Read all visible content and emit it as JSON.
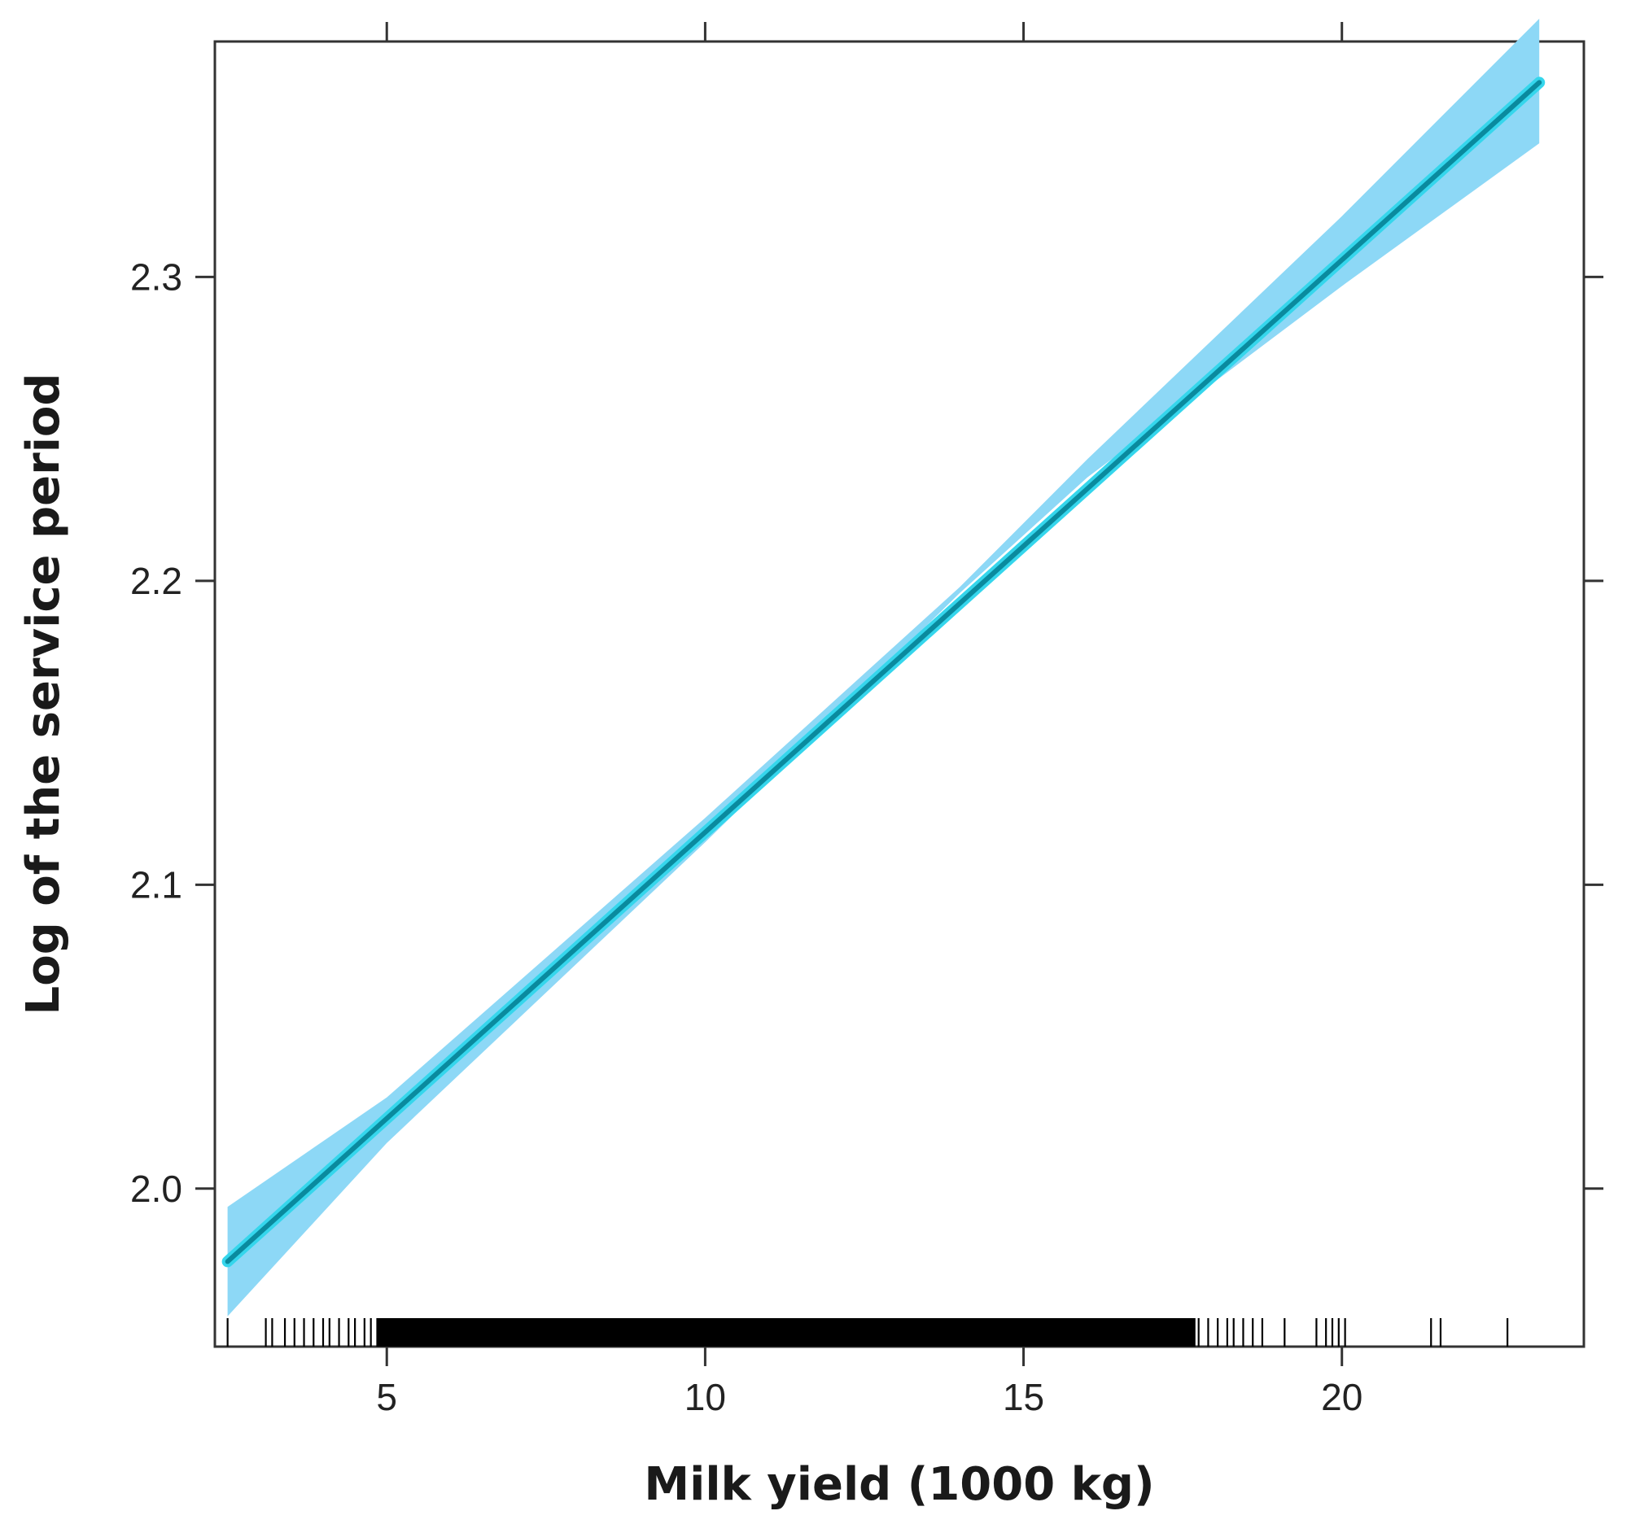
{
  "chart_data": {
    "type": "line",
    "title": "",
    "xlabel": "Milk yield (1000 kg)",
    "ylabel": "Log of the service period",
    "xlim": [
      2.3,
      23.8
    ],
    "ylim": [
      1.948,
      2.3775
    ],
    "x_ticks": [
      5,
      10,
      15,
      20
    ],
    "x_tick_labels": [
      "5",
      "10",
      "15",
      "20"
    ],
    "y_ticks": [
      2.0,
      2.1,
      2.2,
      2.3
    ],
    "y_tick_labels": [
      "2.0",
      "2.1",
      "2.2",
      "2.3"
    ],
    "grid": false,
    "legend": "none",
    "series": [
      {
        "x": [
          2.5,
          23.1
        ],
        "values": [
          1.976,
          2.364
        ],
        "ci_lower_x": [
          2.5,
          5,
          10,
          14,
          16,
          20,
          23.1
        ],
        "ci_lower": [
          1.958,
          2.015,
          2.114,
          2.196,
          2.234,
          2.297,
          2.344
        ],
        "ci_upper_x": [
          2.5,
          5,
          10,
          14,
          16,
          20,
          23.1
        ],
        "ci_upper": [
          1.994,
          2.03,
          2.122,
          2.198,
          2.24,
          2.32,
          2.385
        ]
      }
    ],
    "rug_x": [
      2.5,
      3.1,
      3.2,
      3.4,
      3.55,
      3.7,
      3.85,
      4.0,
      4.1,
      4.25,
      4.4,
      4.5,
      4.65,
      4.75,
      4.85,
      17.75,
      17.9,
      18.05,
      18.2,
      18.3,
      18.45,
      18.6,
      18.75,
      19.1,
      19.6,
      19.75,
      19.85,
      19.95,
      20.05,
      21.4,
      21.55,
      22.6
    ],
    "rug_dense_range": [
      4.85,
      17.7
    ],
    "colors": {
      "line": "#0a8a9e",
      "line_glow": "#35d6ec",
      "band": "#8dd8f6",
      "axis": "#333333",
      "rug": "#000000"
    }
  }
}
